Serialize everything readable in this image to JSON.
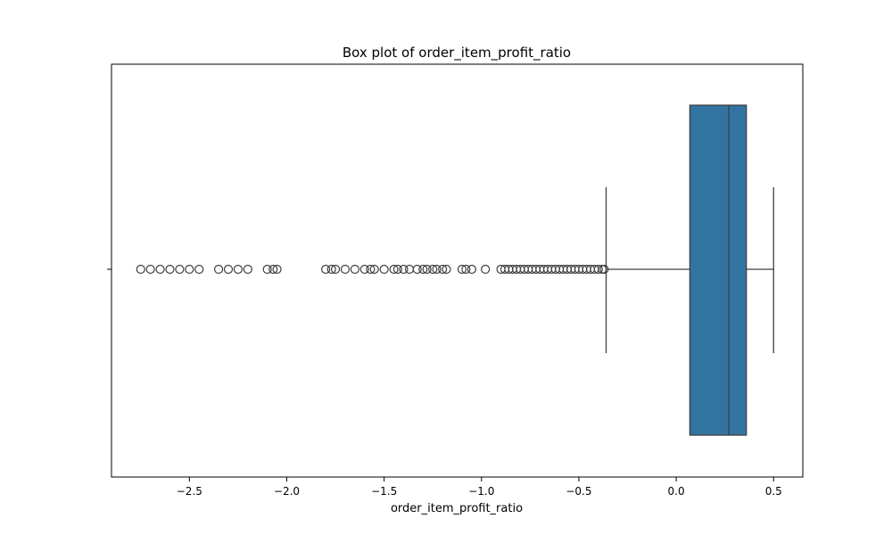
{
  "chart_data": {
    "type": "box",
    "title": "Box plot of order_item_profit_ratio",
    "xlabel": "order_item_profit_ratio",
    "ylabel": "",
    "orientation": "horizontal",
    "xlim": [
      -2.9,
      0.65
    ],
    "xticks": [
      -2.5,
      -2.0,
      -1.5,
      -1.0,
      -0.5,
      0.0,
      0.5
    ],
    "xtick_labels": [
      "−2.5",
      "−2.0",
      "−1.5",
      "−1.0",
      "−0.5",
      "0.0",
      "0.5"
    ],
    "grid": false,
    "box": {
      "whisker_low": -0.36,
      "q1": 0.07,
      "median": 0.27,
      "q3": 0.36,
      "whisker_high": 0.5
    },
    "outliers": [
      -2.75,
      -2.7,
      -2.65,
      -2.6,
      -2.55,
      -2.5,
      -2.45,
      -2.35,
      -2.3,
      -2.25,
      -2.2,
      -2.1,
      -2.07,
      -2.05,
      -1.8,
      -1.77,
      -1.75,
      -1.7,
      -1.65,
      -1.6,
      -1.57,
      -1.55,
      -1.5,
      -1.45,
      -1.43,
      -1.4,
      -1.37,
      -1.33,
      -1.3,
      -1.28,
      -1.25,
      -1.23,
      -1.2,
      -1.18,
      -1.1,
      -1.08,
      -1.05,
      -0.98,
      -0.9,
      -0.88,
      -0.86,
      -0.84,
      -0.82,
      -0.8,
      -0.78,
      -0.76,
      -0.74,
      -0.72,
      -0.7,
      -0.68,
      -0.66,
      -0.64,
      -0.62,
      -0.6,
      -0.58,
      -0.56,
      -0.54,
      -0.52,
      -0.5,
      -0.48,
      -0.46,
      -0.44,
      -0.42,
      -0.4,
      -0.38,
      -0.37
    ],
    "colors": {
      "box_fill": "#3274a1",
      "line": "#3f3f3f",
      "axes": "#000000"
    }
  }
}
